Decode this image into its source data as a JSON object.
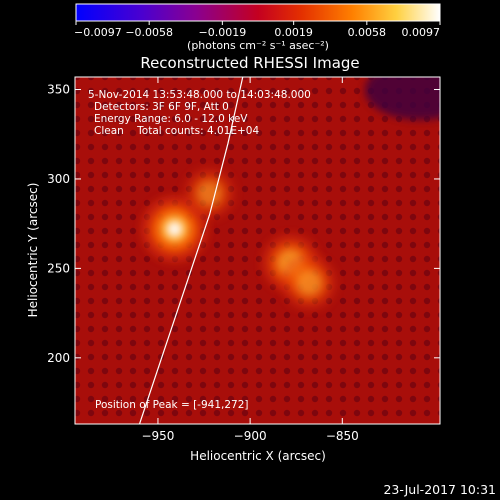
{
  "chart_data": {
    "type": "heatmap",
    "title": "Reconstructed RHESSI Image",
    "xlabel": "Heliocentric X (arcsec)",
    "ylabel": "Heliocentric Y (arcsec)",
    "xlim": [
      -995,
      -797
    ],
    "ylim": [
      163,
      357
    ],
    "x_ticks": [
      -950,
      -900,
      -850
    ],
    "x_tick_labels": [
      "−950",
      "−900",
      "−850"
    ],
    "y_ticks": [
      200,
      250,
      300,
      350
    ],
    "y_tick_labels": [
      "200",
      "250",
      "300",
      "350"
    ],
    "colorbar": {
      "min": -0.0097,
      "max": 0.0097,
      "tick_values": [
        -0.0097,
        -0.0058,
        -0.0019,
        0.0019,
        0.0058,
        0.0097
      ],
      "tick_labels": [
        "−0.0097",
        "−0.0058",
        "−0.0019",
        "0.0019",
        "0.0058",
        "0.0097"
      ],
      "unit_label": "(photons cm⁻² s⁻¹ asec⁻²)",
      "colormap": "blue-purple-red-orange-yellow-white"
    },
    "sources": [
      {
        "x": -941,
        "y": 272,
        "intensity": 1.0
      },
      {
        "x": -878,
        "y": 253,
        "intensity": 0.75
      },
      {
        "x": -868,
        "y": 242,
        "intensity": 0.65
      },
      {
        "x": -922,
        "y": 292,
        "intensity": 0.55
      }
    ],
    "limb_curve": [
      [
        -960,
        163
      ],
      [
        -948,
        200
      ],
      [
        -935,
        240
      ],
      [
        -922,
        280
      ],
      [
        -912,
        320
      ],
      [
        -904,
        357
      ]
    ],
    "annotations": [
      "5-Nov-2014 13:53:48.000 to 14:03:48.000",
      "Detectors: 3F 6F 9F, Att 0",
      "Energy Range: 6.0 - 12.0 keV",
      "Clean    Total counts: 4.01E+04"
    ],
    "peak_label": "Position of Peak = [-941,272]",
    "peak": [
      -941,
      272
    ]
  },
  "footer": {
    "date_stamp": "23-Jul-2017 10:31"
  }
}
